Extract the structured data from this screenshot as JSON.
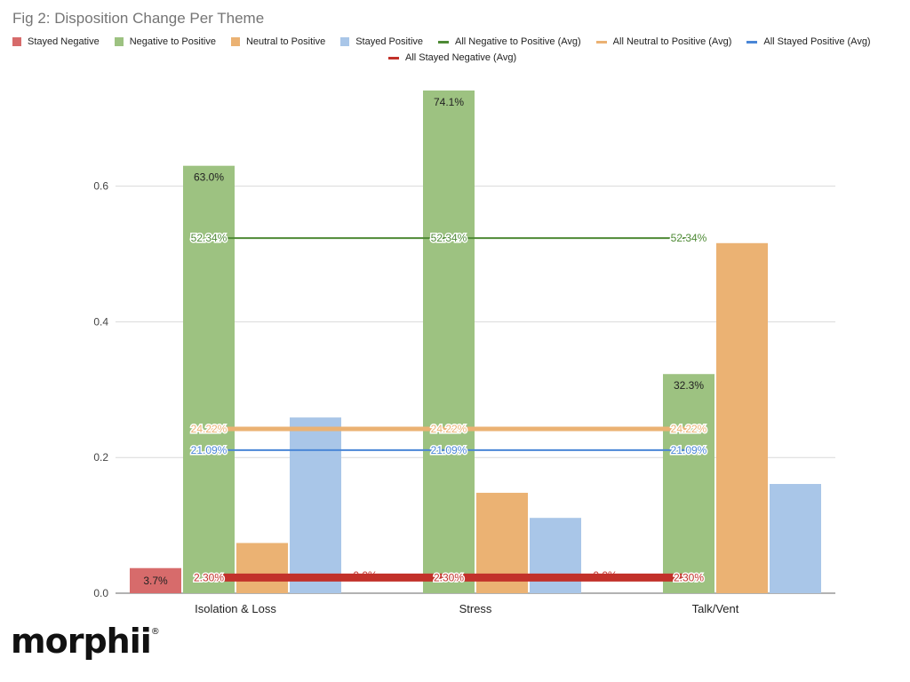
{
  "figure": {
    "title": "Fig 2: Disposition Change Per Theme",
    "logo_text": "morphii",
    "logo_mark": "®"
  },
  "chart_data": {
    "type": "bar",
    "title": "Fig 2: Disposition Change Per Theme",
    "xlabel": "",
    "ylabel": "",
    "ylim": [
      0,
      0.75
    ],
    "yticks": [
      0.0,
      0.2,
      0.4,
      0.6
    ],
    "ytick_labels": [
      "0.0",
      "0.2",
      "0.4",
      "0.6"
    ],
    "grid": true,
    "legend_position": "top",
    "categories": [
      "Isolation & Loss",
      "Stress",
      "Talk/Vent"
    ],
    "series": [
      {
        "name": "Stayed Negative",
        "color": "#d76b6b",
        "values": [
          0.037,
          0.0,
          0.0
        ],
        "labels": [
          "3.7%",
          "0.0%",
          "0.0%"
        ]
      },
      {
        "name": "Negative to Positive",
        "color": "#9dc281",
        "values": [
          0.63,
          0.741,
          0.323
        ],
        "labels": [
          "63.0%",
          "74.1%",
          "32.3%"
        ]
      },
      {
        "name": "Neutral to Positive",
        "color": "#ebb273",
        "values": [
          0.074,
          0.148,
          0.516
        ],
        "labels": [
          "",
          "",
          ""
        ]
      },
      {
        "name": "Stayed Positive",
        "color": "#a9c6e8",
        "values": [
          0.259,
          0.111,
          0.161
        ],
        "labels": [
          "",
          "",
          ""
        ]
      }
    ],
    "avg_lines": [
      {
        "name": "All Negative to Positive (Avg)",
        "color": "#4e8a35",
        "value": 0.5234,
        "label": "52.34%",
        "width": 2
      },
      {
        "name": "All Neutral to Positive (Avg)",
        "color": "#ebb273",
        "value": 0.2422,
        "label": "24.22%",
        "width": 5
      },
      {
        "name": "All Stayed Positive (Avg)",
        "color": "#4a86d6",
        "value": 0.2109,
        "label": "21.09%",
        "width": 2
      },
      {
        "name": "All Stayed Negative (Avg)",
        "color": "#c2312a",
        "value": 0.023,
        "label": "2.30%",
        "width": 9
      }
    ]
  }
}
